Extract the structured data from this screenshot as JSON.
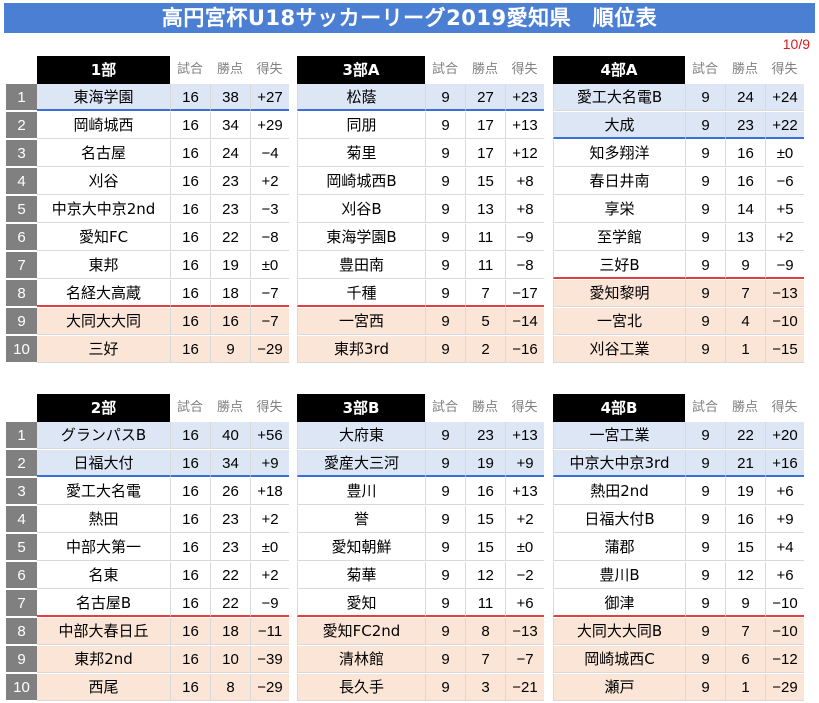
{
  "title": "高円宮杯U18サッカーリーグ2019愛知県　順位表",
  "date": "10/9",
  "columns": [
    "試合",
    "勝点",
    "得失"
  ],
  "groups": [
    {
      "name": "1部",
      "rows": [
        [
          "東海学園",
          "16",
          "38",
          "+27"
        ],
        [
          "岡崎城西",
          "16",
          "34",
          "+29"
        ],
        [
          "名古屋",
          "16",
          "24",
          "−4"
        ],
        [
          "刈谷",
          "16",
          "23",
          "+2"
        ],
        [
          "中京大中京2nd",
          "16",
          "23",
          "−3"
        ],
        [
          "愛知FC",
          "16",
          "22",
          "−8"
        ],
        [
          "東邦",
          "16",
          "19",
          "±0"
        ],
        [
          "名経大高蔵",
          "16",
          "18",
          "−7"
        ],
        [
          "大同大大同",
          "16",
          "16",
          "−7"
        ],
        [
          "三好",
          "16",
          "9",
          "−29"
        ]
      ]
    },
    {
      "name": "3部A",
      "rows": [
        [
          "松蔭",
          "9",
          "27",
          "+23"
        ],
        [
          "同朋",
          "9",
          "17",
          "+13"
        ],
        [
          "菊里",
          "9",
          "17",
          "+12"
        ],
        [
          "岡崎城西B",
          "9",
          "15",
          "+8"
        ],
        [
          "刈谷B",
          "9",
          "13",
          "+8"
        ],
        [
          "東海学園B",
          "9",
          "11",
          "−9"
        ],
        [
          "豊田南",
          "9",
          "11",
          "−8"
        ],
        [
          "千種",
          "9",
          "7",
          "−17"
        ],
        [
          "一宮西",
          "9",
          "5",
          "−14"
        ],
        [
          "東邦3rd",
          "9",
          "2",
          "−16"
        ]
      ]
    },
    {
      "name": "4部A",
      "rows": [
        [
          "愛工大名電B",
          "9",
          "24",
          "+24"
        ],
        [
          "大成",
          "9",
          "23",
          "+22"
        ],
        [
          "知多翔洋",
          "9",
          "16",
          "±0"
        ],
        [
          "春日井南",
          "9",
          "16",
          "−6"
        ],
        [
          "享栄",
          "9",
          "14",
          "+5"
        ],
        [
          "至学館",
          "9",
          "13",
          "+2"
        ],
        [
          "三好B",
          "9",
          "9",
          "−9"
        ],
        [
          "愛知黎明",
          "9",
          "7",
          "−13"
        ],
        [
          "一宮北",
          "9",
          "4",
          "−10"
        ],
        [
          "刈谷工業",
          "9",
          "1",
          "−15"
        ]
      ]
    },
    {
      "name": "2部",
      "rows": [
        [
          "グランパスB",
          "16",
          "40",
          "+56"
        ],
        [
          "日福大付",
          "16",
          "34",
          "+9"
        ],
        [
          "愛工大名電",
          "16",
          "26",
          "+18"
        ],
        [
          "熱田",
          "16",
          "23",
          "+2"
        ],
        [
          "中部大第一",
          "16",
          "23",
          "±0"
        ],
        [
          "名東",
          "16",
          "22",
          "+2"
        ],
        [
          "名古屋B",
          "16",
          "22",
          "−9"
        ],
        [
          "中部大春日丘",
          "16",
          "18",
          "−11"
        ],
        [
          "東邦2nd",
          "16",
          "10",
          "−39"
        ],
        [
          "西尾",
          "16",
          "8",
          "−29"
        ]
      ]
    },
    {
      "name": "3部B",
      "rows": [
        [
          "大府東",
          "9",
          "23",
          "+13"
        ],
        [
          "愛産大三河",
          "9",
          "19",
          "+9"
        ],
        [
          "豊川",
          "9",
          "16",
          "+13"
        ],
        [
          "誉",
          "9",
          "15",
          "+2"
        ],
        [
          "愛知朝鮮",
          "9",
          "15",
          "±0"
        ],
        [
          "菊華",
          "9",
          "12",
          "−2"
        ],
        [
          "愛知",
          "9",
          "11",
          "+6"
        ],
        [
          "愛知FC2nd",
          "9",
          "8",
          "−13"
        ],
        [
          "清林館",
          "9",
          "7",
          "−7"
        ],
        [
          "長久手",
          "9",
          "3",
          "−21"
        ]
      ]
    },
    {
      "name": "4部B",
      "rows": [
        [
          "一宮工業",
          "9",
          "22",
          "+20"
        ],
        [
          "中京大中京3rd",
          "9",
          "21",
          "+16"
        ],
        [
          "熱田2nd",
          "9",
          "19",
          "+6"
        ],
        [
          "日福大付B",
          "9",
          "16",
          "+9"
        ],
        [
          "蒲郡",
          "9",
          "15",
          "+4"
        ],
        [
          "豊川B",
          "9",
          "12",
          "+6"
        ],
        [
          "御津",
          "9",
          "9",
          "−10"
        ],
        [
          "大同大大同B",
          "9",
          "7",
          "−10"
        ],
        [
          "岡崎城西C",
          "9",
          "6",
          "−12"
        ],
        [
          "瀬戸",
          "9",
          "1",
          "−29"
        ]
      ]
    }
  ],
  "colors": {
    "title_bg": "#4a7fd3",
    "promotion_bg": "#dce6f5",
    "relegation_bg": "#fbe5d6",
    "blue_line": "#3a6fd8",
    "red_line": "#e0403f"
  }
}
